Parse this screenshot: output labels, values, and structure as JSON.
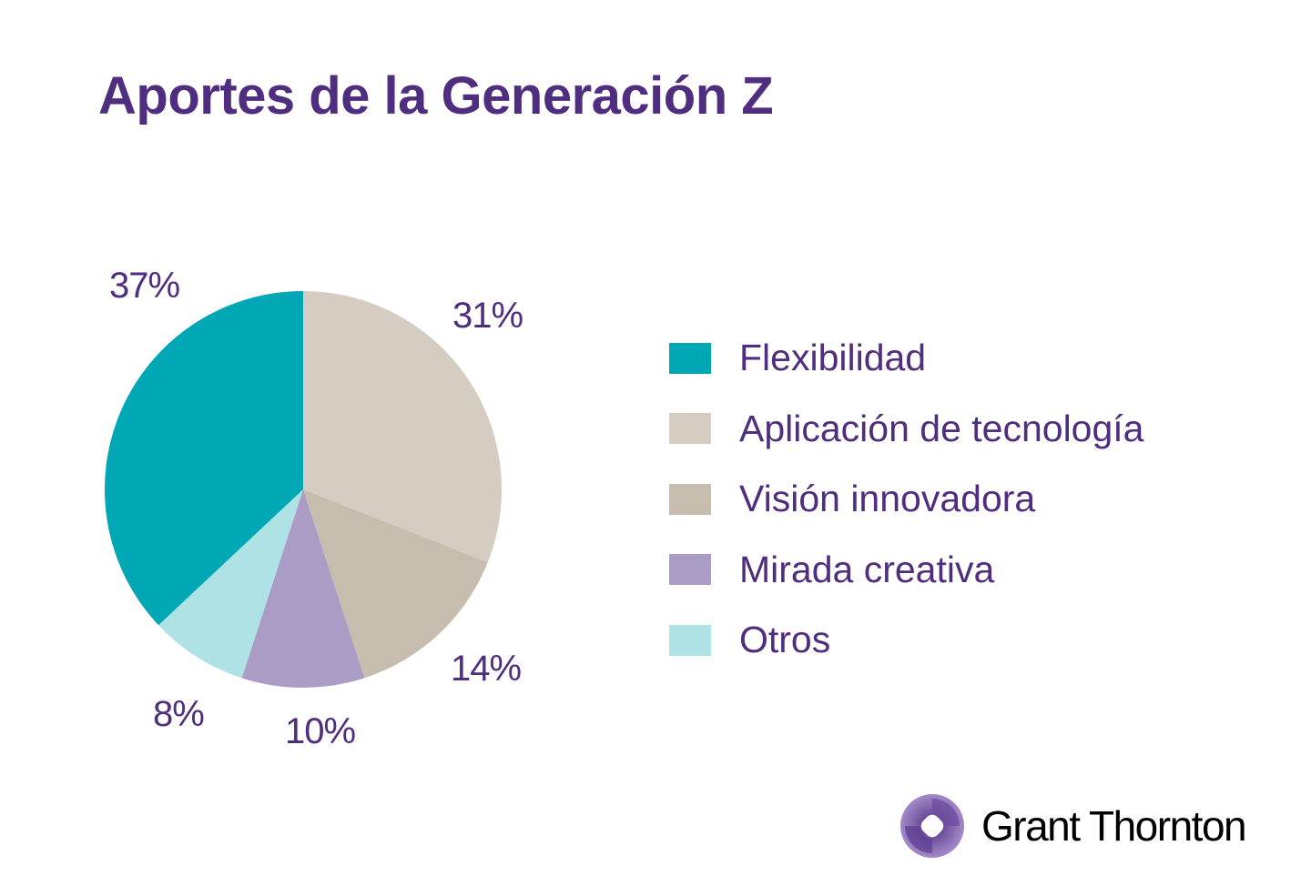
{
  "chart_data": {
    "type": "pie",
    "title": "Aportes de la Generación Z",
    "categories": [
      "Aplicación de tecnología",
      "Visión innovadora",
      "Mirada creativa",
      "Otros",
      "Flexibilidad"
    ],
    "values": [
      31,
      14,
      10,
      8,
      37
    ],
    "value_labels": [
      "31%",
      "14%",
      "10%",
      "8%",
      "37%"
    ],
    "colors": [
      "#D5CDC2",
      "#C6BDAE",
      "#AA9CC5",
      "#AFE2E5",
      "#00A7B5"
    ],
    "start_angle": "top",
    "direction": "clockwise",
    "legend": {
      "placement": "right",
      "items": [
        {
          "label": "Flexibilidad",
          "color": "#00A7B5"
        },
        {
          "label": "Aplicación de tecnología",
          "color": "#D5CDC2"
        },
        {
          "label": "Visión innovadora",
          "color": "#C6BDAE"
        },
        {
          "label": "Mirada creativa",
          "color": "#AA9CC5"
        },
        {
          "label": "Otros",
          "color": "#AFE2E5"
        }
      ]
    }
  },
  "brand": {
    "name": "Grant Thornton",
    "color": "#4F2D7F"
  }
}
